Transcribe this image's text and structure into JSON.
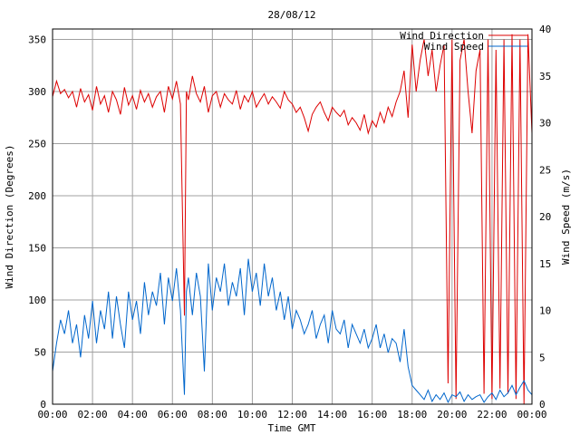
{
  "chart_data": {
    "type": "line",
    "title": "28/08/12",
    "xlabel": "Time GMT",
    "ylabel": "Wind Direction (Degrees)",
    "y2label": "Wind Speed (m/s)",
    "x_ticks": [
      "00:00",
      "02:00",
      "04:00",
      "06:00",
      "08:00",
      "10:00",
      "12:00",
      "14:00",
      "16:00",
      "18:00",
      "20:00",
      "22:00",
      "00:00"
    ],
    "y_ticks": [
      "0",
      "50",
      "100",
      "150",
      "200",
      "250",
      "300",
      "350"
    ],
    "y2_ticks": [
      "0",
      "5",
      "10",
      "15",
      "20",
      "25",
      "30",
      "35",
      "40"
    ],
    "xlim": [
      0,
      24
    ],
    "ylim": [
      0,
      360
    ],
    "y2lim": [
      0,
      40
    ],
    "grid": true,
    "legend_position": "top-right",
    "series": [
      {
        "name": "Wind Direction",
        "axis": "left",
        "color": "#dd0000",
        "x": [
          0.0,
          0.2,
          0.4,
          0.6,
          0.8,
          1.0,
          1.2,
          1.4,
          1.6,
          1.8,
          2.0,
          2.2,
          2.4,
          2.6,
          2.8,
          3.0,
          3.2,
          3.4,
          3.6,
          3.8,
          4.0,
          4.2,
          4.4,
          4.6,
          4.8,
          5.0,
          5.2,
          5.4,
          5.6,
          5.8,
          6.0,
          6.2,
          6.4,
          6.6,
          6.7,
          6.8,
          7.0,
          7.2,
          7.4,
          7.6,
          7.8,
          8.0,
          8.2,
          8.4,
          8.6,
          8.8,
          9.0,
          9.2,
          9.4,
          9.6,
          9.8,
          10.0,
          10.2,
          10.4,
          10.6,
          10.8,
          11.0,
          11.2,
          11.4,
          11.6,
          11.8,
          12.0,
          12.2,
          12.4,
          12.6,
          12.8,
          13.0,
          13.2,
          13.4,
          13.6,
          13.8,
          14.0,
          14.2,
          14.4,
          14.6,
          14.8,
          15.0,
          15.2,
          15.4,
          15.6,
          15.8,
          16.0,
          16.2,
          16.4,
          16.6,
          16.8,
          17.0,
          17.2,
          17.4,
          17.6,
          17.8,
          18.0,
          18.2,
          18.4,
          18.6,
          18.8,
          19.0,
          19.2,
          19.4,
          19.6,
          19.8,
          20.0,
          20.2,
          20.4,
          20.6,
          20.8,
          21.0,
          21.2,
          21.4,
          21.6,
          21.8,
          22.0,
          22.2,
          22.4,
          22.6,
          22.8,
          23.0,
          23.2,
          23.4,
          23.6,
          23.8,
          24.0
        ],
        "values": [
          295,
          310,
          298,
          302,
          294,
          300,
          285,
          303,
          290,
          297,
          282,
          305,
          288,
          296,
          280,
          300,
          292,
          278,
          304,
          287,
          296,
          283,
          301,
          290,
          298,
          285,
          295,
          300,
          280,
          305,
          293,
          310,
          288,
          85,
          300,
          292,
          315,
          298,
          290,
          305,
          280,
          296,
          300,
          285,
          298,
          292,
          288,
          301,
          283,
          296,
          290,
          300,
          285,
          292,
          298,
          288,
          295,
          290,
          284,
          300,
          292,
          288,
          280,
          285,
          275,
          262,
          278,
          285,
          290,
          280,
          272,
          285,
          280,
          276,
          282,
          268,
          275,
          270,
          263,
          278,
          260,
          272,
          266,
          280,
          270,
          285,
          276,
          290,
          300,
          320,
          275,
          345,
          300,
          330,
          350,
          315,
          340,
          300,
          325,
          345,
          20,
          350,
          5,
          330,
          350,
          300,
          260,
          320,
          340,
          10,
          350,
          5,
          340,
          15,
          350,
          10,
          355,
          5,
          350,
          0,
          355,
          260
        ]
      },
      {
        "name": "Wind Speed",
        "axis": "right",
        "color": "#0066cc",
        "x": [
          0.0,
          0.2,
          0.4,
          0.6,
          0.8,
          1.0,
          1.2,
          1.4,
          1.6,
          1.8,
          2.0,
          2.2,
          2.4,
          2.6,
          2.8,
          3.0,
          3.2,
          3.4,
          3.6,
          3.8,
          4.0,
          4.2,
          4.4,
          4.6,
          4.8,
          5.0,
          5.2,
          5.4,
          5.6,
          5.8,
          6.0,
          6.2,
          6.4,
          6.6,
          6.7,
          6.8,
          7.0,
          7.2,
          7.4,
          7.6,
          7.8,
          8.0,
          8.2,
          8.4,
          8.6,
          8.8,
          9.0,
          9.2,
          9.4,
          9.6,
          9.8,
          10.0,
          10.2,
          10.4,
          10.6,
          10.8,
          11.0,
          11.2,
          11.4,
          11.6,
          11.8,
          12.0,
          12.2,
          12.4,
          12.6,
          12.8,
          13.0,
          13.2,
          13.4,
          13.6,
          13.8,
          14.0,
          14.2,
          14.4,
          14.6,
          14.8,
          15.0,
          15.2,
          15.4,
          15.6,
          15.8,
          16.0,
          16.2,
          16.4,
          16.6,
          16.8,
          17.0,
          17.2,
          17.4,
          17.6,
          17.8,
          18.0,
          18.2,
          18.4,
          18.6,
          18.8,
          19.0,
          19.2,
          19.4,
          19.6,
          19.8,
          20.0,
          20.2,
          20.4,
          20.6,
          20.8,
          21.0,
          21.2,
          21.4,
          21.6,
          21.8,
          22.0,
          22.2,
          22.4,
          22.6,
          22.8,
          23.0,
          23.2,
          23.4,
          23.6,
          23.8,
          24.0
        ],
        "values": [
          3.5,
          6.5,
          9.0,
          7.5,
          10.0,
          6.5,
          8.5,
          5.0,
          9.5,
          7.0,
          11.0,
          6.5,
          10.0,
          8.0,
          12.0,
          7.0,
          11.5,
          8.5,
          6.0,
          12.0,
          9.0,
          11.0,
          7.5,
          13.0,
          9.5,
          12.0,
          10.5,
          14.0,
          8.5,
          13.5,
          11.0,
          14.5,
          10.0,
          1.0,
          12.0,
          13.5,
          9.5,
          14.0,
          11.5,
          3.5,
          15.0,
          10.0,
          13.5,
          12.0,
          15.0,
          10.5,
          13.0,
          11.5,
          14.5,
          9.5,
          15.5,
          12.0,
          14.0,
          10.5,
          15.0,
          11.5,
          13.5,
          10.0,
          12.0,
          9.0,
          11.5,
          8.0,
          10.0,
          9.0,
          7.5,
          8.5,
          10.0,
          7.0,
          8.5,
          9.5,
          6.5,
          10.0,
          8.0,
          7.5,
          9.0,
          6.0,
          8.5,
          7.5,
          6.5,
          8.0,
          6.0,
          7.0,
          8.5,
          6.0,
          7.5,
          5.5,
          7.0,
          6.5,
          4.5,
          8.0,
          4.0,
          2.0,
          1.5,
          1.0,
          0.5,
          1.5,
          0.3,
          1.0,
          0.5,
          1.2,
          0.2,
          1.0,
          0.8,
          1.3,
          0.3,
          1.0,
          0.5,
          0.8,
          1.0,
          0.2,
          0.8,
          1.2,
          0.5,
          1.5,
          0.8,
          1.2,
          2.0,
          1.0,
          1.8,
          2.5,
          1.5,
          1.0
        ]
      }
    ]
  }
}
